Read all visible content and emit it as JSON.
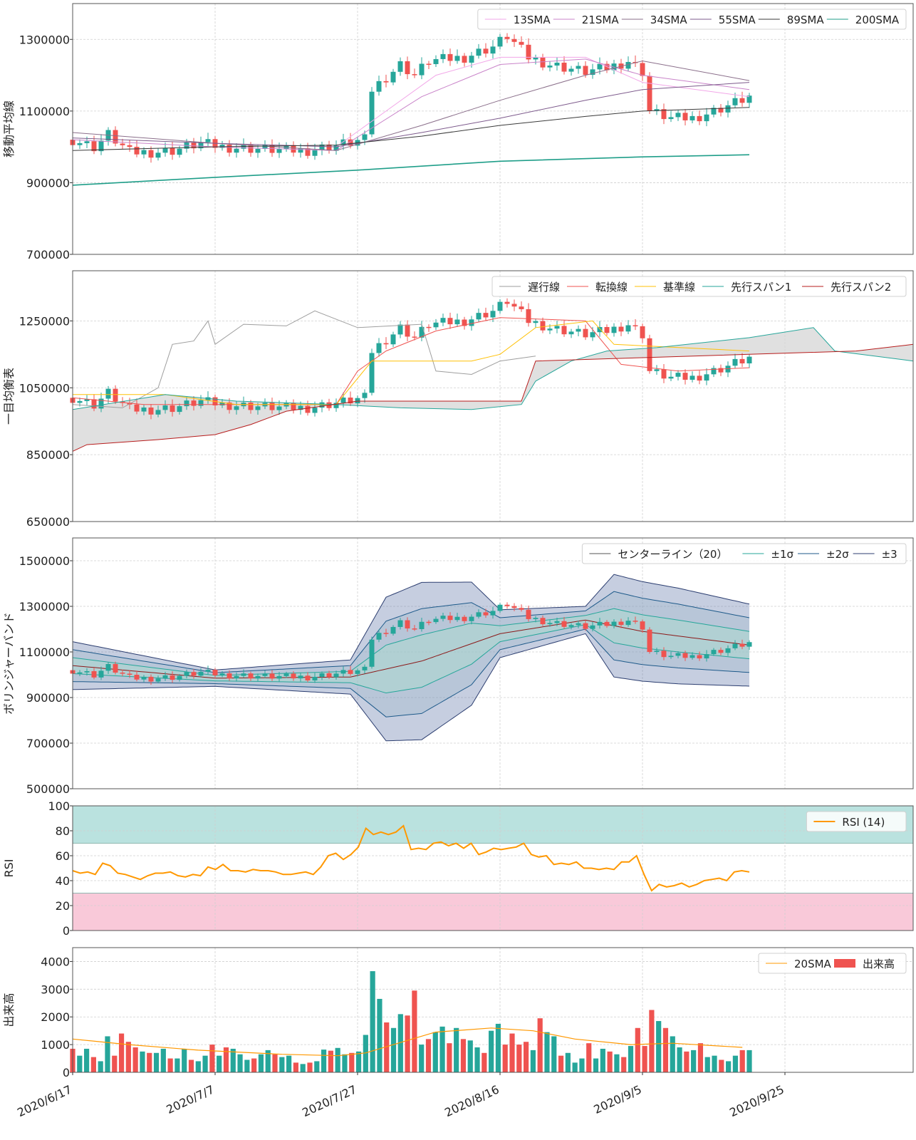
{
  "x_axis": {
    "tick_labels": [
      "2020/6/17",
      "2020/7/7",
      "2020/7/27",
      "2020/8/16",
      "2020/9/5",
      "2020/9/25"
    ],
    "start_date": "2020-06-17",
    "end_date": "2020-10-13",
    "last_data_date": "2020-09-20"
  },
  "colors": {
    "up": "#26a69a",
    "down": "#ef5350",
    "sma13": "#f2a6e8",
    "sma21": "#c983c9",
    "sma34": "#8a6e8a",
    "sma55": "#7d5a8c",
    "sma89": "#3a3a3a",
    "sma200": "#1f9e89",
    "chikou": "#9e9e9e",
    "tenkan": "#ef5350",
    "kijun": "#ffc107",
    "spanA": "#26a69a",
    "spanB": "#b71c1c",
    "cloud": "#d6d6d6",
    "bb_center": "#8b1a1a",
    "bb1": "#26a69a",
    "bb2": "#1e5a8a",
    "bb3": "#2c3e70",
    "rsi": "#ff9800",
    "rsi_over": "#b2dfdb",
    "rsi_under": "#f8bbd0",
    "volsma": "#ff9800"
  },
  "chart_data": [
    {
      "id": "sma_panel",
      "type": "candlestick+line",
      "ylabel": "移動平均線",
      "ylim": [
        700000,
        1400000
      ],
      "yticks": [
        700000,
        900000,
        1100000,
        1300000
      ],
      "legend_position": "top-right",
      "legend": [
        "13SMA",
        "21SMA",
        "34SMA",
        "55SMA",
        "89SMA",
        "200SMA"
      ],
      "candles_ohlc_note": "daily 2020-06-17 .. 2020-09-20 (approx. read from chart)",
      "series": [
        {
          "name": "13SMA",
          "points": [
            [
              "2020-07-24",
              1000000
            ],
            [
              "2020-07-31",
              1100000
            ],
            [
              "2020-08-07",
              1200000
            ],
            [
              "2020-08-16",
              1250000
            ],
            [
              "2020-08-28",
              1250000
            ],
            [
              "2020-09-05",
              1180000
            ],
            [
              "2020-09-20",
              1140000
            ]
          ]
        },
        {
          "name": "21SMA",
          "points": [
            [
              "2020-06-17",
              1020000
            ],
            [
              "2020-07-07",
              1000000
            ],
            [
              "2020-07-24",
              990000
            ],
            [
              "2020-08-05",
              1140000
            ],
            [
              "2020-08-16",
              1230000
            ],
            [
              "2020-08-28",
              1245000
            ],
            [
              "2020-09-05",
              1200000
            ],
            [
              "2020-09-20",
              1160000
            ]
          ]
        },
        {
          "name": "34SMA",
          "points": [
            [
              "2020-06-17",
              1040000
            ],
            [
              "2020-07-07",
              1010000
            ],
            [
              "2020-07-24",
              990000
            ],
            [
              "2020-08-05",
              1060000
            ],
            [
              "2020-08-16",
              1130000
            ],
            [
              "2020-08-28",
              1200000
            ],
            [
              "2020-09-05",
              1240000
            ],
            [
              "2020-09-20",
              1185000
            ]
          ]
        },
        {
          "name": "55SMA",
          "points": [
            [
              "2020-06-17",
              1025000
            ],
            [
              "2020-07-07",
              1010000
            ],
            [
              "2020-07-24",
              1000000
            ],
            [
              "2020-08-05",
              1040000
            ],
            [
              "2020-08-16",
              1080000
            ],
            [
              "2020-08-28",
              1130000
            ],
            [
              "2020-09-05",
              1160000
            ],
            [
              "2020-09-20",
              1180000
            ]
          ]
        },
        {
          "name": "89SMA",
          "points": [
            [
              "2020-06-17",
              990000
            ],
            [
              "2020-07-07",
              1000000
            ],
            [
              "2020-07-24",
              1005000
            ],
            [
              "2020-08-05",
              1030000
            ],
            [
              "2020-08-16",
              1060000
            ],
            [
              "2020-08-28",
              1085000
            ],
            [
              "2020-09-05",
              1100000
            ],
            [
              "2020-09-20",
              1110000
            ]
          ]
        },
        {
          "name": "200SMA",
          "points": [
            [
              "2020-06-17",
              893000
            ],
            [
              "2020-07-07",
              915000
            ],
            [
              "2020-07-27",
              935000
            ],
            [
              "2020-08-16",
              960000
            ],
            [
              "2020-09-05",
              972000
            ],
            [
              "2020-09-20",
              978000
            ]
          ]
        }
      ]
    },
    {
      "id": "ichimoku_panel",
      "type": "candlestick+line",
      "ylabel": "一目均衡表",
      "ylim": [
        650000,
        1400000
      ],
      "yticks": [
        650000,
        850000,
        1050000,
        1250000
      ],
      "legend_position": "top-right",
      "legend": [
        "遅行線",
        "転換線",
        "基準線",
        "先行スパン1",
        "先行スパン2"
      ],
      "series": [
        {
          "name": "遅行線",
          "points": [
            [
              "2020-06-17",
              1000000
            ],
            [
              "2020-06-24",
              990000
            ],
            [
              "2020-06-29",
              1050000
            ],
            [
              "2020-07-01",
              1180000
            ],
            [
              "2020-07-04",
              1190000
            ],
            [
              "2020-07-06",
              1250000
            ],
            [
              "2020-07-07",
              1180000
            ],
            [
              "2020-07-11",
              1240000
            ],
            [
              "2020-07-17",
              1235000
            ],
            [
              "2020-07-21",
              1280000
            ],
            [
              "2020-07-27",
              1230000
            ],
            [
              "2020-08-05",
              1240000
            ],
            [
              "2020-08-07",
              1100000
            ],
            [
              "2020-08-12",
              1090000
            ],
            [
              "2020-08-16",
              1130000
            ],
            [
              "2020-08-21",
              1145000
            ]
          ]
        },
        {
          "name": "転換線",
          "points": [
            [
              "2020-06-17",
              1020000
            ],
            [
              "2020-06-27",
              1000000
            ],
            [
              "2020-07-10",
              1000000
            ],
            [
              "2020-07-24",
              1000000
            ],
            [
              "2020-07-27",
              1100000
            ],
            [
              "2020-07-31",
              1160000
            ],
            [
              "2020-08-07",
              1220000
            ],
            [
              "2020-08-16",
              1260000
            ],
            [
              "2020-08-28",
              1250000
            ],
            [
              "2020-09-02",
              1120000
            ],
            [
              "2020-09-10",
              1100000
            ],
            [
              "2020-09-20",
              1110000
            ]
          ]
        },
        {
          "name": "基準線",
          "points": [
            [
              "2020-06-17",
              1030000
            ],
            [
              "2020-06-30",
              1030000
            ],
            [
              "2020-07-10",
              1000000
            ],
            [
              "2020-07-24",
              1000000
            ],
            [
              "2020-07-29",
              1130000
            ],
            [
              "2020-08-12",
              1130000
            ],
            [
              "2020-08-16",
              1150000
            ],
            [
              "2020-08-21",
              1230000
            ],
            [
              "2020-08-29",
              1250000
            ],
            [
              "2020-09-01",
              1180000
            ],
            [
              "2020-09-20",
              1160000
            ]
          ]
        },
        {
          "name": "先行スパン1",
          "points": [
            [
              "2020-06-17",
              985000
            ],
            [
              "2020-06-30",
              1030000
            ],
            [
              "2020-07-10",
              1010000
            ],
            [
              "2020-07-24",
              1000000
            ],
            [
              "2020-08-02",
              990000
            ],
            [
              "2020-08-12",
              985000
            ],
            [
              "2020-08-19",
              1000000
            ],
            [
              "2020-08-21",
              1070000
            ],
            [
              "2020-08-26",
              1130000
            ],
            [
              "2020-08-31",
              1160000
            ],
            [
              "2020-09-07",
              1170000
            ],
            [
              "2020-09-20",
              1200000
            ],
            [
              "2020-09-29",
              1230000
            ],
            [
              "2020-10-02",
              1160000
            ],
            [
              "2020-10-13",
              1130000
            ]
          ]
        },
        {
          "name": "先行スパン2",
          "points": [
            [
              "2020-06-17",
              860000
            ],
            [
              "2020-06-19",
              880000
            ],
            [
              "2020-06-29",
              895000
            ],
            [
              "2020-07-07",
              910000
            ],
            [
              "2020-07-12",
              940000
            ],
            [
              "2020-07-17",
              980000
            ],
            [
              "2020-07-27",
              1010000
            ],
            [
              "2020-08-19",
              1010000
            ],
            [
              "2020-08-21",
              1130000
            ],
            [
              "2020-09-05",
              1140000
            ],
            [
              "2020-09-20",
              1150000
            ],
            [
              "2020-10-05",
              1160000
            ],
            [
              "2020-10-13",
              1180000
            ]
          ]
        }
      ]
    },
    {
      "id": "bollinger_panel",
      "type": "candlestick+band",
      "ylabel": "ボリンジャーバンド",
      "ylim": [
        500000,
        1600000
      ],
      "yticks": [
        500000,
        700000,
        900000,
        1100000,
        1300000,
        1500000
      ],
      "legend_position": "top-right",
      "legend": [
        "センターライン（20）",
        "±1σ",
        "±2σ",
        "±3"
      ],
      "center": [
        [
          "2020-06-17",
          1040000
        ],
        [
          "2020-07-07",
          985000
        ],
        [
          "2020-07-26",
          990000
        ],
        [
          "2020-08-05",
          1060000
        ],
        [
          "2020-08-16",
          1180000
        ],
        [
          "2020-08-28",
          1240000
        ],
        [
          "2020-09-05",
          1190000
        ],
        [
          "2020-09-20",
          1130000
        ]
      ],
      "sigma": [
        [
          "2020-06-17",
          35000
        ],
        [
          "2020-07-07",
          12000
        ],
        [
          "2020-07-26",
          25000
        ],
        [
          "2020-07-31",
          105000
        ],
        [
          "2020-08-05",
          115000
        ],
        [
          "2020-08-12",
          90000
        ],
        [
          "2020-08-16",
          35000
        ],
        [
          "2020-08-28",
          20000
        ],
        [
          "2020-09-01",
          75000
        ],
        [
          "2020-09-10",
          70000
        ],
        [
          "2020-09-20",
          60000
        ]
      ]
    },
    {
      "id": "rsi_panel",
      "type": "line",
      "ylabel": "RSI",
      "ylim": [
        0,
        100
      ],
      "yticks": [
        0,
        20,
        40,
        60,
        80,
        100
      ],
      "legend_position": "top-right",
      "legend": [
        "RSI (14)"
      ],
      "overbought": 70,
      "oversold": 30,
      "values": [
        48,
        46,
        47,
        45,
        54,
        52,
        46,
        45,
        43,
        41,
        44,
        46,
        46,
        47,
        44,
        43,
        45,
        44,
        51,
        49,
        53,
        48,
        48,
        47,
        49,
        48,
        48,
        47,
        45,
        45,
        46,
        47,
        45,
        51,
        60,
        62,
        57,
        61,
        67,
        82,
        77,
        79,
        77,
        79,
        84,
        65,
        66,
        65,
        70,
        71,
        68,
        70,
        66,
        70,
        61,
        63,
        66,
        65,
        66,
        67,
        70,
        61,
        59,
        60,
        53,
        54,
        53,
        55,
        50,
        50,
        49,
        50,
        49,
        55,
        55,
        60,
        45,
        32,
        37,
        35,
        36,
        38,
        35,
        37,
        40,
        41,
        42,
        40,
        47,
        48,
        47
      ]
    },
    {
      "id": "volume_panel",
      "type": "bar+line",
      "ylabel": "出来高",
      "ylim": [
        0,
        4500
      ],
      "yticks": [
        0,
        1000,
        2000,
        3000,
        4000
      ],
      "legend_position": "top-right",
      "legend": [
        "20SMA",
        "出来高"
      ],
      "values": [
        850,
        600,
        850,
        550,
        400,
        1300,
        600,
        1400,
        1100,
        900,
        750,
        700,
        700,
        850,
        500,
        500,
        850,
        450,
        400,
        600,
        1000,
        600,
        900,
        850,
        650,
        450,
        500,
        650,
        800,
        650,
        550,
        600,
        350,
        300,
        350,
        400,
        820,
        780,
        880,
        650,
        700,
        750,
        1350,
        3650,
        2650,
        1800,
        1600,
        2100,
        2050,
        2950,
        1000,
        1200,
        1450,
        1650,
        1050,
        1600,
        1200,
        1150,
        900,
        700,
        1500,
        1750,
        1000,
        1400,
        1000,
        1100,
        800,
        1950,
        1450,
        1300,
        600,
        700,
        350,
        500,
        1050,
        500,
        850,
        750,
        650,
        550,
        950,
        1600,
        950,
        2250,
        1850,
        1600,
        1300,
        900,
        750,
        800,
        1050,
        550,
        600,
        450,
        400,
        600,
        800,
        800
      ],
      "sma20": [
        [
          0,
          1200
        ],
        [
          8,
          1000
        ],
        [
          18,
          800
        ],
        [
          30,
          650
        ],
        [
          38,
          600
        ],
        [
          42,
          700
        ],
        [
          46,
          1000
        ],
        [
          52,
          1450
        ],
        [
          60,
          1600
        ],
        [
          66,
          1500
        ],
        [
          72,
          1200
        ],
        [
          80,
          1000
        ],
        [
          86,
          1050
        ],
        [
          96,
          900
        ]
      ]
    }
  ]
}
